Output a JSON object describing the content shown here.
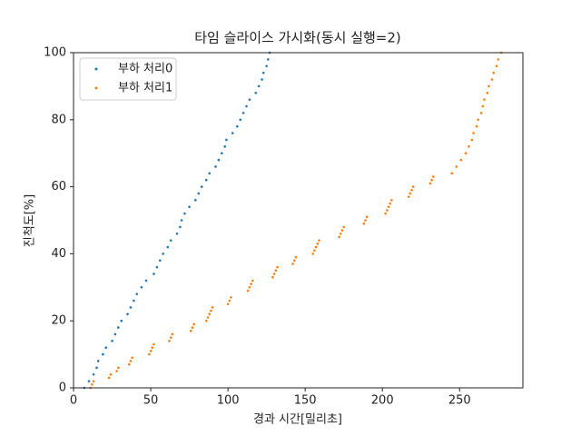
{
  "chart_data": {
    "type": "scatter",
    "title": "타임 슬라이스 가시화(동시 실행=2)",
    "x_label": "경과 시간[밀리초]",
    "y_label": "진척도[%]",
    "xlim": [
      0,
      291
    ],
    "ylim": [
      0,
      100
    ],
    "xticks": [
      0,
      50,
      100,
      150,
      200,
      250
    ],
    "yticks": [
      0,
      20,
      40,
      60,
      80,
      100
    ],
    "legend": "upper left",
    "series": [
      {
        "name": "부하 처리0",
        "color": "#1f77b4",
        "x": [
          7,
          10,
          13,
          15,
          16,
          19,
          21,
          25,
          27,
          29,
          31,
          35,
          37,
          39,
          41,
          44,
          47,
          52,
          54,
          56,
          58,
          61,
          63,
          67,
          69,
          70,
          72,
          75,
          79,
          81,
          83,
          86,
          88,
          92,
          94,
          96,
          98,
          99,
          103,
          106,
          108,
          110,
          112,
          114,
          118,
          120,
          122,
          123,
          125,
          126,
          127
        ],
        "values": [
          0,
          2,
          4,
          6,
          8,
          10,
          12,
          14,
          16,
          18,
          20,
          22,
          24,
          26,
          28,
          30,
          32,
          34,
          36,
          38,
          40,
          42,
          44,
          46,
          48,
          50,
          52,
          54,
          56,
          58,
          60,
          62,
          64,
          66,
          68,
          70,
          72,
          74,
          76,
          78,
          80,
          82,
          84,
          86,
          88,
          90,
          92,
          94,
          96,
          98,
          100
        ]
      },
      {
        "name": "부하 처리1",
        "color": "#ff7f0e",
        "x": [
          11,
          12,
          13,
          23,
          24,
          28,
          29,
          36,
          37,
          38,
          49,
          50,
          51,
          52,
          62,
          63,
          64,
          76,
          77,
          78,
          86,
          87,
          88,
          89,
          90,
          100,
          101,
          102,
          113,
          114,
          115,
          116,
          129,
          130,
          131,
          132,
          142,
          143,
          144,
          155,
          156,
          157,
          158,
          159,
          172,
          173,
          174,
          175,
          188,
          189,
          190,
          202,
          203,
          204,
          205,
          206,
          217,
          218,
          219,
          220,
          231,
          232,
          233,
          245,
          248,
          251,
          254,
          256,
          258,
          259,
          261,
          262,
          264,
          265,
          266,
          268,
          269,
          271,
          272,
          274,
          275,
          277
        ],
        "values": [
          0,
          1,
          2,
          3,
          4,
          5,
          6,
          7,
          8,
          9,
          10,
          11,
          12,
          13,
          14,
          15,
          16,
          17,
          18,
          19,
          20,
          21,
          22,
          23,
          24,
          25,
          26,
          27,
          29,
          30,
          31,
          32,
          33,
          34,
          35,
          36,
          37,
          38,
          39,
          40,
          41,
          42,
          43,
          44,
          45,
          46,
          47,
          48,
          49,
          50,
          51,
          52,
          53,
          54,
          55,
          56,
          57,
          58,
          59,
          60,
          61,
          62,
          63,
          64,
          66,
          68,
          70,
          72,
          74,
          76,
          78,
          80,
          82,
          84,
          86,
          88,
          90,
          92,
          94,
          96,
          98,
          100
        ]
      }
    ]
  }
}
